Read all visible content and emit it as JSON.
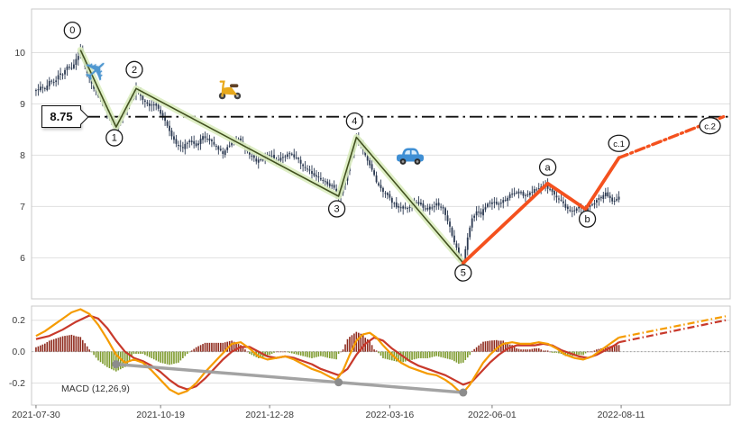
{
  "figure": {
    "background": "#ffffff",
    "border_color": "#c8c8c8",
    "grid_color": "#e0e0e0",
    "tick_color": "#3a3a3a"
  },
  "chart_data": [
    {
      "type": "candlestick",
      "panel": "price",
      "xlim": [
        -2,
        312
      ],
      "ylim": [
        5.2,
        10.85
      ],
      "y_ticks": [
        {
          "v": 10,
          "label": "10"
        },
        {
          "v": 9,
          "label": "9"
        },
        {
          "v": 8,
          "label": "8"
        },
        {
          "v": 7,
          "label": "7"
        },
        {
          "v": 6,
          "label": "6"
        }
      ],
      "x_ticks": [
        {
          "d": 0,
          "label": "2021-07-30"
        },
        {
          "d": 56,
          "label": "2021-10-19"
        },
        {
          "d": 105,
          "label": "2021-12-28"
        },
        {
          "d": 159,
          "label": "2022-03-16"
        },
        {
          "d": 205,
          "label": "2022-06-01"
        },
        {
          "d": 263,
          "label": "2022-08-11"
        }
      ],
      "candle_color": "#2c3a52",
      "last_day": 262,
      "close_keypoints": [
        [
          0,
          9.25
        ],
        [
          2,
          9.35
        ],
        [
          4,
          9.3
        ],
        [
          6,
          9.45
        ],
        [
          8,
          9.4
        ],
        [
          10,
          9.55
        ],
        [
          12,
          9.6
        ],
        [
          14,
          9.75
        ],
        [
          16,
          9.7
        ],
        [
          18,
          9.85
        ],
        [
          20,
          10.05
        ],
        [
          22,
          9.75
        ],
        [
          24,
          9.5
        ],
        [
          26,
          9.3
        ],
        [
          28,
          9.15
        ],
        [
          30,
          9.0
        ],
        [
          33,
          8.75
        ],
        [
          36,
          8.55
        ],
        [
          39,
          8.8
        ],
        [
          42,
          9.05
        ],
        [
          45,
          9.3
        ],
        [
          48,
          9.1
        ],
        [
          51,
          8.95
        ],
        [
          54,
          9.0
        ],
        [
          57,
          8.75
        ],
        [
          60,
          8.45
        ],
        [
          63,
          8.2
        ],
        [
          66,
          8.15
        ],
        [
          69,
          8.3
        ],
        [
          72,
          8.2
        ],
        [
          75,
          8.35
        ],
        [
          78,
          8.3
        ],
        [
          81,
          8.15
        ],
        [
          84,
          8.05
        ],
        [
          87,
          8.2
        ],
        [
          90,
          8.35
        ],
        [
          93,
          8.2
        ],
        [
          96,
          8.0
        ],
        [
          99,
          7.9
        ],
        [
          102,
          7.95
        ],
        [
          105,
          8.0
        ],
        [
          108,
          7.9
        ],
        [
          111,
          7.95
        ],
        [
          114,
          8.05
        ],
        [
          117,
          7.95
        ],
        [
          120,
          7.8
        ],
        [
          124,
          7.65
        ],
        [
          128,
          7.55
        ],
        [
          131,
          7.45
        ],
        [
          134,
          7.35
        ],
        [
          136,
          7.2
        ],
        [
          139,
          7.5
        ],
        [
          141,
          7.9
        ],
        [
          144,
          8.35
        ],
        [
          147,
          8.1
        ],
        [
          150,
          7.8
        ],
        [
          153,
          7.5
        ],
        [
          156,
          7.3
        ],
        [
          159,
          7.15
        ],
        [
          162,
          7.0
        ],
        [
          165,
          6.95
        ],
        [
          168,
          7.0
        ],
        [
          171,
          7.1
        ],
        [
          174,
          7.0
        ],
        [
          177,
          6.95
        ],
        [
          180,
          7.05
        ],
        [
          183,
          6.95
        ],
        [
          186,
          6.6
        ],
        [
          188,
          6.3
        ],
        [
          190,
          6.05
        ],
        [
          192,
          5.9
        ],
        [
          194,
          6.4
        ],
        [
          196,
          6.75
        ],
        [
          198,
          6.9
        ],
        [
          200,
          6.85
        ],
        [
          202,
          7.0
        ],
        [
          205,
          7.1
        ],
        [
          208,
          7.05
        ],
        [
          211,
          7.15
        ],
        [
          214,
          7.25
        ],
        [
          217,
          7.3
        ],
        [
          220,
          7.2
        ],
        [
          223,
          7.3
        ],
        [
          226,
          7.35
        ],
        [
          229,
          7.4
        ],
        [
          232,
          7.3
        ],
        [
          235,
          7.15
        ],
        [
          238,
          7.0
        ],
        [
          241,
          6.9
        ],
        [
          244,
          7.0
        ],
        [
          247,
          6.95
        ],
        [
          250,
          7.05
        ],
        [
          253,
          7.15
        ],
        [
          256,
          7.25
        ],
        [
          259,
          7.1
        ],
        [
          262,
          7.2
        ]
      ],
      "hline": {
        "value": 8.75,
        "label": "8.75",
        "color": "#111111"
      },
      "impulse_wave": {
        "color": "#42511f",
        "glow_color": "#dcedc0",
        "points": [
          {
            "label": "0",
            "d": 20,
            "price": 10.05,
            "ox": -9,
            "oy": -22
          },
          {
            "label": "1",
            "d": 36,
            "price": 8.55,
            "ox": -2,
            "oy": 12
          },
          {
            "label": "2",
            "d": 45,
            "price": 9.3,
            "ox": -2,
            "oy": -21
          },
          {
            "label": "3",
            "d": 136,
            "price": 7.2,
            "ox": -2,
            "oy": 14
          },
          {
            "label": "4",
            "d": 144,
            "price": 8.35,
            "ox": -2,
            "oy": -18
          },
          {
            "label": "5",
            "d": 192,
            "price": 5.9,
            "ox": 0,
            "oy": 11
          }
        ]
      },
      "projection_wave": {
        "color": "#f4511e",
        "points": [
          {
            "label": null,
            "d": 192,
            "price": 5.9
          },
          {
            "label": "a",
            "d": 230,
            "price": 7.45,
            "ox": 0,
            "oy": -18
          },
          {
            "label": "b",
            "d": 247,
            "price": 6.95,
            "ox": 2,
            "oy": 11
          },
          {
            "label": "c.1",
            "d": 262,
            "price": 7.95,
            "ox": 0,
            "oy": -16
          },
          {
            "label": "c.2",
            "d": 309,
            "price": 8.75,
            "ox": -15,
            "oy": 10
          }
        ]
      },
      "icons": [
        {
          "name": "airplane",
          "d": 27,
          "price": 9.65
        },
        {
          "name": "scooter",
          "d": 88,
          "price": 9.28
        },
        {
          "name": "car",
          "d": 168,
          "price": 8.0
        }
      ]
    },
    {
      "type": "macd",
      "panel": "indicator",
      "label": "MACD (12,26,9)",
      "ylim": [
        -0.34,
        0.29
      ],
      "y_ticks": [
        {
          "v": 0.2,
          "label": "0.2"
        },
        {
          "v": 0.0,
          "label": "0.0"
        },
        {
          "v": -0.2,
          "label": "-0.2"
        }
      ],
      "macd_color": "#f59b00",
      "signal_color": "#c8392b",
      "hist_pos_color": "#8f2b1e",
      "hist_neg_color": "#7d9a2d",
      "hist_scale": 1.4,
      "macd_keypoints": [
        [
          0,
          0.1
        ],
        [
          4,
          0.13
        ],
        [
          8,
          0.17
        ],
        [
          12,
          0.21
        ],
        [
          16,
          0.25
        ],
        [
          20,
          0.27
        ],
        [
          24,
          0.24
        ],
        [
          28,
          0.17
        ],
        [
          32,
          0.08
        ],
        [
          36,
          -0.02
        ],
        [
          40,
          -0.07
        ],
        [
          44,
          -0.05
        ],
        [
          48,
          -0.07
        ],
        [
          52,
          -0.12
        ],
        [
          56,
          -0.18
        ],
        [
          60,
          -0.24
        ],
        [
          64,
          -0.27
        ],
        [
          68,
          -0.25
        ],
        [
          72,
          -0.2
        ],
        [
          76,
          -0.13
        ],
        [
          80,
          -0.07
        ],
        [
          84,
          -0.01
        ],
        [
          88,
          0.05
        ],
        [
          92,
          0.06
        ],
        [
          96,
          0.02
        ],
        [
          100,
          -0.03
        ],
        [
          104,
          -0.05
        ],
        [
          108,
          -0.04
        ],
        [
          112,
          -0.03
        ],
        [
          116,
          -0.05
        ],
        [
          120,
          -0.08
        ],
        [
          124,
          -0.11
        ],
        [
          128,
          -0.13
        ],
        [
          132,
          -0.16
        ],
        [
          135,
          -0.18
        ],
        [
          138,
          -0.12
        ],
        [
          141,
          -0.02
        ],
        [
          144,
          0.07
        ],
        [
          147,
          0.11
        ],
        [
          150,
          0.12
        ],
        [
          153,
          0.09
        ],
        [
          156,
          0.04
        ],
        [
          160,
          -0.02
        ],
        [
          164,
          -0.07
        ],
        [
          168,
          -0.1
        ],
        [
          172,
          -0.12
        ],
        [
          176,
          -0.14
        ],
        [
          180,
          -0.15
        ],
        [
          184,
          -0.18
        ],
        [
          187,
          -0.21
        ],
        [
          190,
          -0.25
        ],
        [
          192,
          -0.26
        ],
        [
          195,
          -0.21
        ],
        [
          198,
          -0.14
        ],
        [
          201,
          -0.07
        ],
        [
          204,
          -0.02
        ],
        [
          207,
          0.02
        ],
        [
          210,
          0.05
        ],
        [
          214,
          0.06
        ],
        [
          218,
          0.05
        ],
        [
          222,
          0.05
        ],
        [
          226,
          0.06
        ],
        [
          230,
          0.05
        ],
        [
          234,
          0.02
        ],
        [
          238,
          -0.02
        ],
        [
          242,
          -0.04
        ],
        [
          246,
          -0.05
        ],
        [
          250,
          -0.03
        ],
        [
          254,
          0.01
        ],
        [
          258,
          0.05
        ],
        [
          262,
          0.09
        ]
      ],
      "signal_keypoints": [
        [
          0,
          0.08
        ],
        [
          6,
          0.1
        ],
        [
          12,
          0.14
        ],
        [
          18,
          0.19
        ],
        [
          24,
          0.23
        ],
        [
          28,
          0.21
        ],
        [
          32,
          0.15
        ],
        [
          36,
          0.07
        ],
        [
          40,
          0.0
        ],
        [
          44,
          -0.04
        ],
        [
          48,
          -0.06
        ],
        [
          52,
          -0.09
        ],
        [
          56,
          -0.13
        ],
        [
          60,
          -0.18
        ],
        [
          64,
          -0.22
        ],
        [
          68,
          -0.24
        ],
        [
          72,
          -0.22
        ],
        [
          76,
          -0.17
        ],
        [
          80,
          -0.11
        ],
        [
          84,
          -0.05
        ],
        [
          88,
          0.0
        ],
        [
          92,
          0.03
        ],
        [
          96,
          0.03
        ],
        [
          100,
          0.0
        ],
        [
          104,
          -0.03
        ],
        [
          108,
          -0.04
        ],
        [
          112,
          -0.03
        ],
        [
          116,
          -0.04
        ],
        [
          120,
          -0.06
        ],
        [
          124,
          -0.08
        ],
        [
          128,
          -0.11
        ],
        [
          132,
          -0.13
        ],
        [
          136,
          -0.15
        ],
        [
          140,
          -0.11
        ],
        [
          144,
          -0.02
        ],
        [
          148,
          0.05
        ],
        [
          152,
          0.09
        ],
        [
          156,
          0.07
        ],
        [
          160,
          0.02
        ],
        [
          164,
          -0.02
        ],
        [
          168,
          -0.06
        ],
        [
          172,
          -0.09
        ],
        [
          176,
          -0.11
        ],
        [
          180,
          -0.13
        ],
        [
          184,
          -0.15
        ],
        [
          188,
          -0.18
        ],
        [
          192,
          -0.21
        ],
        [
          196,
          -0.19
        ],
        [
          200,
          -0.13
        ],
        [
          204,
          -0.07
        ],
        [
          208,
          -0.02
        ],
        [
          212,
          0.02
        ],
        [
          216,
          0.04
        ],
        [
          220,
          0.04
        ],
        [
          224,
          0.04
        ],
        [
          228,
          0.05
        ],
        [
          232,
          0.04
        ],
        [
          236,
          0.01
        ],
        [
          240,
          -0.01
        ],
        [
          244,
          -0.03
        ],
        [
          248,
          -0.04
        ],
        [
          252,
          -0.02
        ],
        [
          256,
          0.01
        ],
        [
          260,
          0.04
        ],
        [
          262,
          0.06
        ]
      ],
      "trend_line": {
        "color": "#9e9e9e",
        "dot_color": "#8c8c8c",
        "points": [
          [
            36,
            -0.08
          ],
          [
            136,
            -0.195
          ],
          [
            192,
            -0.26
          ]
        ]
      },
      "projection": {
        "macd_end": [
          310,
          0.225
        ],
        "signal_end": [
          310,
          0.2
        ]
      }
    }
  ]
}
